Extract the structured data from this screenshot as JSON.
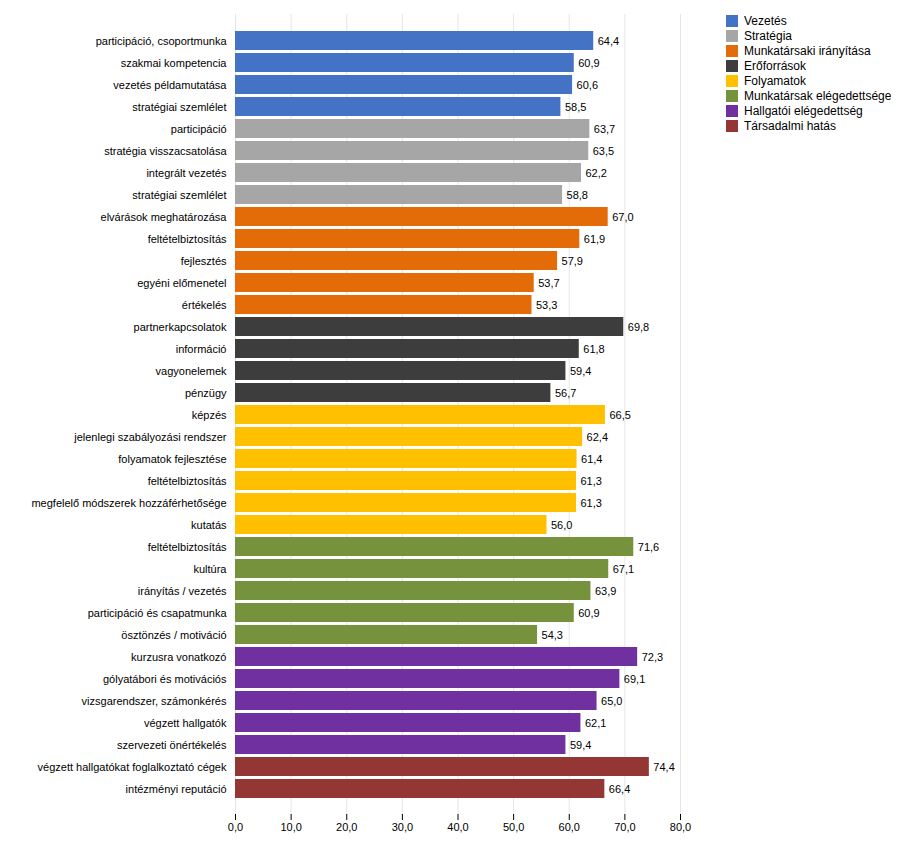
{
  "chart_data": {
    "type": "bar",
    "orientation": "horizontal",
    "categories": [
      "participáció, csoportmunka",
      "szakmai kompetencia",
      "vezetés példamutatása",
      "stratégiai szemlélet",
      "participáció",
      "stratégia visszacsatolása",
      "integrált vezetés",
      "stratégiai szemlélet",
      "elvárások meghatározása",
      "feltételbiztosítás",
      "fejlesztés",
      "egyéni előmenetel",
      "értékelés",
      "partnerkapcsolatok",
      "információ",
      "vagyonelemek",
      "pénzügy",
      "képzés",
      "jelenlegi szabályozási rendszer",
      "folyamatok fejlesztése",
      "feltételbiztosítás",
      "megfelelő módszerek hozzáférhetősége",
      "kutatás",
      "feltételbiztosítás",
      "kultúra",
      "irányítás / vezetés",
      "participáció és csapatmunka",
      "ösztönzés / motiváció",
      "kurzusra vonatkozó",
      "gólyatábori és motivációs",
      "vizsgarendszer, számonkérés",
      "végzett hallgatók",
      "szervezeti önértékelés",
      "végzett hallgatókat foglalkoztató cégek",
      "intézményi reputáció"
    ],
    "series": [
      {
        "name": "Vezetés",
        "color": "#4472C4",
        "values": [
          64.4,
          60.9,
          60.6,
          58.5,
          null,
          null,
          null,
          null,
          null,
          null,
          null,
          null,
          null,
          null,
          null,
          null,
          null,
          null,
          null,
          null,
          null,
          null,
          null,
          null,
          null,
          null,
          null,
          null,
          null,
          null,
          null,
          null,
          null,
          null,
          null
        ],
        "value_labels": [
          "64,4",
          "60,9",
          "60,6",
          "58,5",
          null,
          null,
          null,
          null,
          null,
          null,
          null,
          null,
          null,
          null,
          null,
          null,
          null,
          null,
          null,
          null,
          null,
          null,
          null,
          null,
          null,
          null,
          null,
          null,
          null,
          null,
          null,
          null,
          null,
          null,
          null
        ]
      },
      {
        "name": "Stratégia",
        "color": "#A6A6A6",
        "values": [
          null,
          null,
          null,
          null,
          63.7,
          63.5,
          62.2,
          58.8,
          null,
          null,
          null,
          null,
          null,
          null,
          null,
          null,
          null,
          null,
          null,
          null,
          null,
          null,
          null,
          null,
          null,
          null,
          null,
          null,
          null,
          null,
          null,
          null,
          null,
          null,
          null
        ],
        "value_labels": [
          null,
          null,
          null,
          null,
          "63,7",
          "63,5",
          "62,2",
          "58,8",
          null,
          null,
          null,
          null,
          null,
          null,
          null,
          null,
          null,
          null,
          null,
          null,
          null,
          null,
          null,
          null,
          null,
          null,
          null,
          null,
          null,
          null,
          null,
          null,
          null,
          null,
          null
        ]
      },
      {
        "name": "Munkatársaki irányítása",
        "color": "#E36C09",
        "values": [
          null,
          null,
          null,
          null,
          null,
          null,
          null,
          null,
          67.0,
          61.9,
          57.9,
          53.7,
          53.3,
          null,
          null,
          null,
          null,
          null,
          null,
          null,
          null,
          null,
          null,
          null,
          null,
          null,
          null,
          null,
          null,
          null,
          null,
          null,
          null,
          null,
          null
        ],
        "value_labels": [
          null,
          null,
          null,
          null,
          null,
          null,
          null,
          null,
          "67,0",
          "61,9",
          "57,9",
          "53,7",
          "53,3",
          null,
          null,
          null,
          null,
          null,
          null,
          null,
          null,
          null,
          null,
          null,
          null,
          null,
          null,
          null,
          null,
          null,
          null,
          null,
          null,
          null,
          null
        ]
      },
      {
        "name": "Erőforrások",
        "color": "#3D3D3D",
        "values": [
          null,
          null,
          null,
          null,
          null,
          null,
          null,
          null,
          null,
          null,
          null,
          null,
          null,
          69.8,
          61.8,
          59.4,
          56.7,
          null,
          null,
          null,
          null,
          null,
          null,
          null,
          null,
          null,
          null,
          null,
          null,
          null,
          null,
          null,
          null,
          null,
          null
        ],
        "value_labels": [
          null,
          null,
          null,
          null,
          null,
          null,
          null,
          null,
          null,
          null,
          null,
          null,
          null,
          "69,8",
          "61,8",
          "59,4",
          "56,7",
          null,
          null,
          null,
          null,
          null,
          null,
          null,
          null,
          null,
          null,
          null,
          null,
          null,
          null,
          null,
          null,
          null,
          null
        ]
      },
      {
        "name": "Folyamatok",
        "color": "#FFC000",
        "values": [
          null,
          null,
          null,
          null,
          null,
          null,
          null,
          null,
          null,
          null,
          null,
          null,
          null,
          null,
          null,
          null,
          null,
          66.5,
          62.4,
          61.4,
          61.3,
          61.3,
          56.0,
          null,
          null,
          null,
          null,
          null,
          null,
          null,
          null,
          null,
          null,
          null,
          null
        ],
        "value_labels": [
          null,
          null,
          null,
          null,
          null,
          null,
          null,
          null,
          null,
          null,
          null,
          null,
          null,
          null,
          null,
          null,
          null,
          "66,5",
          "62,4",
          "61,4",
          "61,3",
          "61,3",
          "56,0",
          null,
          null,
          null,
          null,
          null,
          null,
          null,
          null,
          null,
          null,
          null,
          null
        ]
      },
      {
        "name": "Munkatársak elégedettsége",
        "color": "#76923C",
        "values": [
          null,
          null,
          null,
          null,
          null,
          null,
          null,
          null,
          null,
          null,
          null,
          null,
          null,
          null,
          null,
          null,
          null,
          null,
          null,
          null,
          null,
          null,
          null,
          71.6,
          67.1,
          63.9,
          60.9,
          54.3,
          null,
          null,
          null,
          null,
          null,
          null,
          null
        ],
        "value_labels": [
          null,
          null,
          null,
          null,
          null,
          null,
          null,
          null,
          null,
          null,
          null,
          null,
          null,
          null,
          null,
          null,
          null,
          null,
          null,
          null,
          null,
          null,
          null,
          "71,6",
          "67,1",
          "63,9",
          "60,9",
          "54,3",
          null,
          null,
          null,
          null,
          null,
          null,
          null
        ]
      },
      {
        "name": "Hallgatói elégedettség",
        "color": "#7030A0",
        "values": [
          null,
          null,
          null,
          null,
          null,
          null,
          null,
          null,
          null,
          null,
          null,
          null,
          null,
          null,
          null,
          null,
          null,
          null,
          null,
          null,
          null,
          null,
          null,
          null,
          null,
          null,
          null,
          null,
          72.3,
          69.1,
          65.0,
          62.1,
          59.4,
          null,
          null
        ],
        "value_labels": [
          null,
          null,
          null,
          null,
          null,
          null,
          null,
          null,
          null,
          null,
          null,
          null,
          null,
          null,
          null,
          null,
          null,
          null,
          null,
          null,
          null,
          null,
          null,
          null,
          null,
          null,
          null,
          null,
          "72,3",
          "69,1",
          "65,0",
          "62,1",
          "59,4",
          null,
          null
        ]
      },
      {
        "name": "Társadalmi hatás",
        "color": "#943634",
        "values": [
          null,
          null,
          null,
          null,
          null,
          null,
          null,
          null,
          null,
          null,
          null,
          null,
          null,
          null,
          null,
          null,
          null,
          null,
          null,
          null,
          null,
          null,
          null,
          null,
          null,
          null,
          null,
          null,
          null,
          null,
          null,
          null,
          null,
          74.4,
          66.4
        ],
        "value_labels": [
          null,
          null,
          null,
          null,
          null,
          null,
          null,
          null,
          null,
          null,
          null,
          null,
          null,
          null,
          null,
          null,
          null,
          null,
          null,
          null,
          null,
          null,
          null,
          null,
          null,
          null,
          null,
          null,
          null,
          null,
          null,
          null,
          null,
          "74,4",
          "66,4"
        ]
      }
    ],
    "xlim": [
      0,
      80
    ],
    "xticks": [
      {
        "value": 0,
        "label": "0,0"
      },
      {
        "value": 10,
        "label": "10,0"
      },
      {
        "value": 20,
        "label": "20,0"
      },
      {
        "value": 30,
        "label": "30,0"
      },
      {
        "value": 40,
        "label": "40,0"
      },
      {
        "value": 50,
        "label": "50,0"
      },
      {
        "value": 60,
        "label": "60,0"
      },
      {
        "value": 70,
        "label": "70,0"
      },
      {
        "value": 80,
        "label": "80,0"
      }
    ],
    "grid": true,
    "data_labels": true,
    "legend": "right"
  }
}
